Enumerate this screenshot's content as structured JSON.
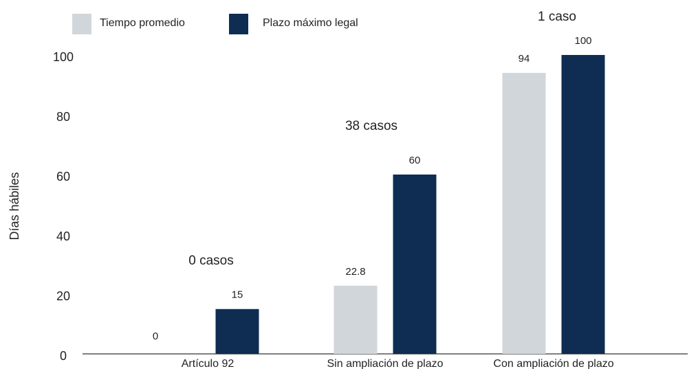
{
  "chart_data": {
    "type": "bar",
    "y_label": "Días hábiles",
    "categories": [
      "Artículo 92",
      "Sin ampliación de plazo",
      "Con ampliación de plazo"
    ],
    "annotations": [
      "0 casos",
      "38 casos",
      "1 caso"
    ],
    "series": [
      {
        "name": "Tiempo promedio",
        "color": "#d1d6da",
        "values": [
          0,
          22.8,
          94
        ]
      },
      {
        "name": "Plazo máximo legal",
        "color": "#0f2d52",
        "values": [
          15,
          60,
          100
        ]
      }
    ],
    "ylim": [
      0,
      100
    ],
    "yticks": [
      0,
      20,
      40,
      60,
      80,
      100
    ],
    "legend": "top-left"
  }
}
